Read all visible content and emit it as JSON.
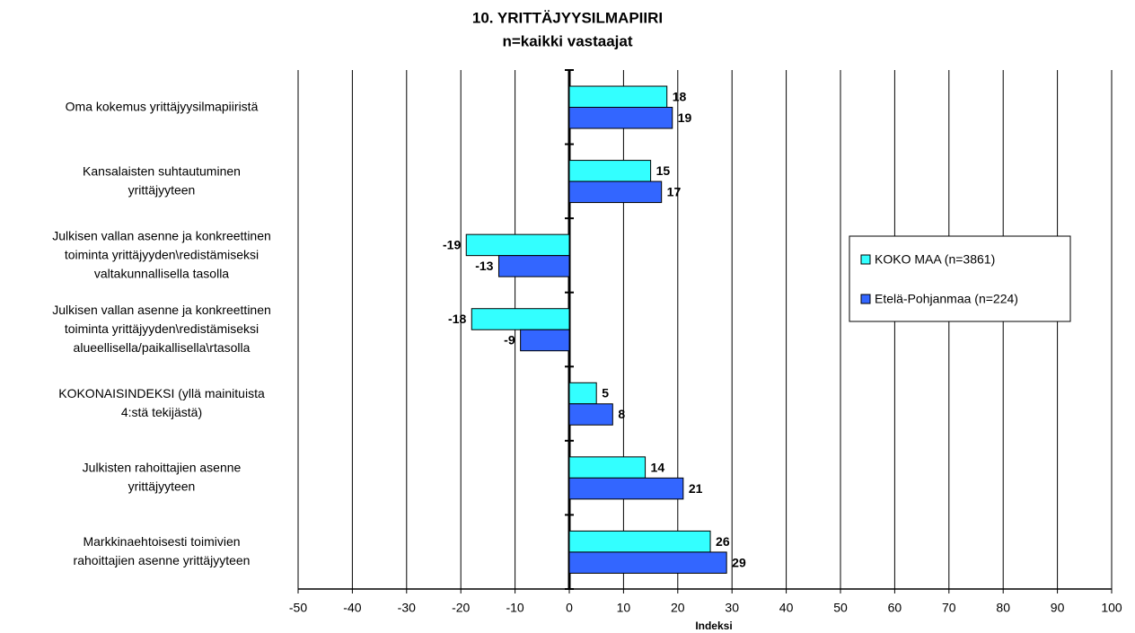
{
  "chart_data": {
    "type": "hbar",
    "title": "10. YRITTÄJYYSILMAPIIRI",
    "subtitle": "n=kaikki vastaajat",
    "x_label": "Indeksi",
    "categories": [
      "Oma kokemus yrittäjyysilmapiiristä",
      "Kansalaisten suhtautuminen\nyrittäjyyteen",
      "Julkisen vallan asenne ja konkreettinen\ntoiminta yrittäjyyden\\redistämiseksi\nvaltakunnallisella tasolla",
      "Julkisen vallan asenne ja konkreettinen\ntoiminta yrittäjyyden\\redistämiseksi\nalueellisella/paikallisella\\rtasolla",
      "KOKONAISINDEKSI (yllä mainituista\n4:stä tekijästä)",
      "Julkisten rahoittajien asenne\nyrittäjyyteen",
      "Markkinaehtoisesti toimivien\nrahoittajien asenne yrittäjyyteen"
    ],
    "series": [
      {
        "name": "KOKO MAA (n=3861)",
        "color": "#33ffff",
        "values": [
          18,
          15,
          -19,
          -18,
          5,
          14,
          26
        ]
      },
      {
        "name": "Etelä-Pohjanmaa (n=224)",
        "color": "#3366ff",
        "values": [
          19,
          17,
          -13,
          -9,
          8,
          21,
          29
        ]
      }
    ],
    "xlim": [
      -50,
      100
    ],
    "xticks": [
      -50,
      -40,
      -30,
      -20,
      -10,
      0,
      10,
      20,
      30,
      40,
      50,
      60,
      70,
      80,
      90,
      100
    ],
    "grid": true,
    "legend": "right"
  }
}
